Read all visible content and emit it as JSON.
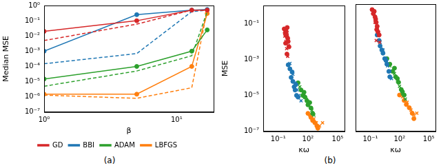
{
  "chart_data": [
    {
      "type": "line",
      "caption": "(a)",
      "xlabel": "β",
      "ylabel": "Median MSE",
      "log": true,
      "legend": "bottom",
      "xlim": [
        1,
        19
      ],
      "xticks": [
        {
          "value": 1,
          "label": "10⁰"
        },
        {
          "value": 10,
          "label": "10¹"
        }
      ],
      "ylim": [
        1e-07,
        1
      ],
      "yticks": [
        {
          "value": 1e-07,
          "label": "10⁻⁷"
        },
        {
          "value": 1e-06,
          "label": "10⁻⁶"
        },
        {
          "value": 1e-05,
          "label": "10⁻⁵"
        },
        {
          "value": 0.0001,
          "label": "10⁻⁴"
        },
        {
          "value": 0.001,
          "label": "10⁻³"
        },
        {
          "value": 0.01,
          "label": "10⁻²"
        },
        {
          "value": 0.1,
          "label": "10⁻¹"
        },
        {
          "value": 1,
          "label": "10⁰"
        }
      ],
      "x": [
        1,
        5,
        13,
        17
      ],
      "series": [
        {
          "name": "GD",
          "color": "#d62728",
          "line_style": "solid",
          "marker": "circle",
          "values": [
            0.02,
            0.1,
            0.5,
            0.5
          ]
        },
        {
          "name": null,
          "color": "#d62728",
          "line_style": "dashed",
          "marker": "none",
          "values": [
            0.005,
            0.06,
            0.5,
            0.5
          ]
        },
        {
          "name": "BBI",
          "color": "#1f77b4",
          "line_style": "solid",
          "marker": "circle",
          "values": [
            0.001,
            0.25,
            0.5,
            0.55
          ]
        },
        {
          "name": null,
          "color": "#1f77b4",
          "line_style": "dashed",
          "marker": "none",
          "values": [
            0.00015,
            0.0007,
            0.4,
            0.5
          ]
        },
        {
          "name": "ADAM",
          "color": "#2ca02c",
          "line_style": "solid",
          "marker": "circle",
          "values": [
            1.5e-05,
            0.0001,
            0.001,
            0.025
          ]
        },
        {
          "name": null,
          "color": "#2ca02c",
          "line_style": "dashed",
          "marker": "none",
          "values": [
            5e-06,
            5e-05,
            0.0005,
            0.4
          ]
        },
        {
          "name": "LBFGS",
          "color": "#ff7f0e",
          "line_style": "solid",
          "marker": "circle",
          "values": [
            1.5e-06,
            1.5e-06,
            0.0001,
            0.3
          ]
        },
        {
          "name": null,
          "color": "#ff7f0e",
          "line_style": "dashed",
          "marker": "none",
          "values": [
            1.3e-06,
            8e-07,
            4e-06,
            0.5
          ]
        }
      ]
    },
    {
      "type": "scatter",
      "caption": "(b)",
      "xlabel": "κω",
      "ylabel": "MSE",
      "log": true,
      "xlim": [
        0.003,
        500000
      ],
      "xticks": [
        {
          "value": 0.1,
          "label": "10⁻¹"
        },
        {
          "value": 100,
          "label": "10²"
        },
        {
          "value": 100000,
          "label": "10⁵"
        }
      ],
      "ylim": [
        1e-07,
        1
      ],
      "yticks": [
        {
          "value": 1e-07,
          "label": "10⁻⁷"
        },
        {
          "value": 1e-05,
          "label": "10⁻⁵"
        },
        {
          "value": 0.001,
          "label": "10⁻³"
        },
        {
          "value": 0.1,
          "label": "10⁻¹"
        }
      ],
      "series": [
        {
          "color": "#d62728",
          "marker": "circle",
          "x": [
            0.4,
            0.5,
            0.6,
            0.7,
            0.8,
            0.9,
            1.0,
            1.2,
            0.55,
            0.75
          ],
          "values": [
            0.05,
            0.03,
            0.04,
            0.02,
            0.06,
            0.015,
            0.01,
            0.005,
            0.008,
            0.002
          ]
        },
        {
          "color": "#d62728",
          "marker": "cross",
          "x": [
            0.45,
            0.6,
            0.8,
            1.0,
            0.7,
            0.9
          ],
          "values": [
            0.02,
            0.01,
            0.03,
            0.006,
            0.004,
            0.0015
          ]
        },
        {
          "color": "#1f77b4",
          "marker": "circle",
          "x": [
            1,
            1.5,
            2,
            3,
            4,
            5,
            7,
            10,
            2.5,
            6
          ],
          "values": [
            0.0005,
            0.0003,
            0.0001,
            6e-05,
            3e-05,
            2e-05,
            1e-05,
            8e-06,
            0.0002,
            4e-05
          ]
        },
        {
          "color": "#1f77b4",
          "marker": "cross",
          "x": [
            1.5,
            3,
            5,
            8,
            12,
            20
          ],
          "values": [
            0.0006,
            0.00015,
            5e-05,
            2e-05,
            1e-05,
            5e-06
          ]
        },
        {
          "color": "#2ca02c",
          "marker": "circle",
          "x": [
            10,
            20,
            30,
            50,
            80,
            100,
            200,
            300,
            40,
            150
          ],
          "values": [
            5e-05,
            2e-05,
            1e-05,
            8e-06,
            5e-06,
            3e-06,
            2e-06,
            1e-06,
            1.5e-05,
            4e-06
          ]
        },
        {
          "color": "#2ca02c",
          "marker": "cross",
          "x": [
            15,
            40,
            70,
            120,
            250,
            400
          ],
          "values": [
            3e-05,
            1.2e-05,
            6e-06,
            3e-06,
            1.5e-06,
            8e-07
          ]
        },
        {
          "color": "#ff7f0e",
          "marker": "circle",
          "x": [
            100,
            200,
            300,
            500,
            800,
            1000
          ],
          "values": [
            1e-06,
            6e-07,
            4e-07,
            3e-07,
            2e-07,
            1.5e-07
          ]
        },
        {
          "color": "#ff7f0e",
          "marker": "cross",
          "x": [
            150,
            400,
            700,
            1500,
            3000
          ],
          "values": [
            8e-07,
            5e-07,
            3e-07,
            2e-07,
            3e-07
          ]
        }
      ]
    },
    {
      "type": "scatter",
      "xlabel": "κω",
      "log": true,
      "tick_labels": "x",
      "xlim": [
        0.003,
        500000
      ],
      "xticks": [
        {
          "value": 0.1,
          "label": "10⁻¹"
        },
        {
          "value": 100,
          "label": "10²"
        },
        {
          "value": 100000,
          "label": "10⁵"
        }
      ],
      "ylim": [
        1e-07,
        1
      ],
      "yticks": [
        {
          "value": 1e-07,
          "label": "10⁻⁷"
        },
        {
          "value": 1e-05,
          "label": "10⁻⁵"
        },
        {
          "value": 0.001,
          "label": "10⁻³"
        },
        {
          "value": 0.1,
          "label": "10⁻¹"
        }
      ],
      "series": [
        {
          "color": "#d62728",
          "marker": "circle",
          "x": [
            0.15,
            0.2,
            0.3,
            0.4,
            0.5,
            0.6,
            0.25,
            0.35,
            0.45,
            0.8
          ],
          "values": [
            0.5,
            0.3,
            0.2,
            0.1,
            0.06,
            0.03,
            0.4,
            0.15,
            0.04,
            0.02
          ]
        },
        {
          "color": "#d62728",
          "marker": "cross",
          "x": [
            0.2,
            0.3,
            0.5,
            0.7,
            0.4,
            0.9
          ],
          "values": [
            0.3,
            0.1,
            0.05,
            0.02,
            0.01,
            0.008
          ]
        },
        {
          "color": "#1f77b4",
          "marker": "circle",
          "x": [
            0.5,
            0.8,
            1,
            2,
            3,
            5,
            8,
            1.5,
            4,
            10
          ],
          "values": [
            0.02,
            0.01,
            0.005,
            0.002,
            0.001,
            0.0005,
            0.0002,
            0.003,
            0.0008,
            0.0001
          ]
        },
        {
          "color": "#1f77b4",
          "marker": "cross",
          "x": [
            1,
            2,
            4,
            6,
            10,
            15
          ],
          "values": [
            0.008,
            0.003,
            0.001,
            0.0004,
            0.0002,
            8e-05
          ]
        },
        {
          "color": "#2ca02c",
          "marker": "circle",
          "x": [
            5,
            10,
            20,
            40,
            80,
            150,
            300,
            30,
            60,
            200
          ],
          "values": [
            0.001,
            0.0005,
            0.0002,
            0.0001,
            5e-05,
            2e-05,
            1e-05,
            0.0003,
            8e-05,
            1.5e-05
          ]
        },
        {
          "color": "#2ca02c",
          "marker": "cross",
          "x": [
            10,
            30,
            60,
            100,
            200,
            400
          ],
          "values": [
            0.0004,
            0.00015,
            6e-05,
            3e-05,
            1.2e-05,
            6e-06
          ]
        },
        {
          "color": "#ff7f0e",
          "marker": "circle",
          "x": [
            100,
            300,
            500,
            1000,
            2000,
            3000
          ],
          "values": [
            1e-05,
            5e-06,
            3e-06,
            2e-06,
            1e-06,
            5e-07
          ]
        },
        {
          "color": "#ff7f0e",
          "marker": "cross",
          "x": [
            200,
            600,
            1500,
            3000,
            6000
          ],
          "values": [
            8e-06,
            4e-06,
            1.5e-06,
            8e-07,
            1e-06
          ]
        }
      ]
    }
  ]
}
